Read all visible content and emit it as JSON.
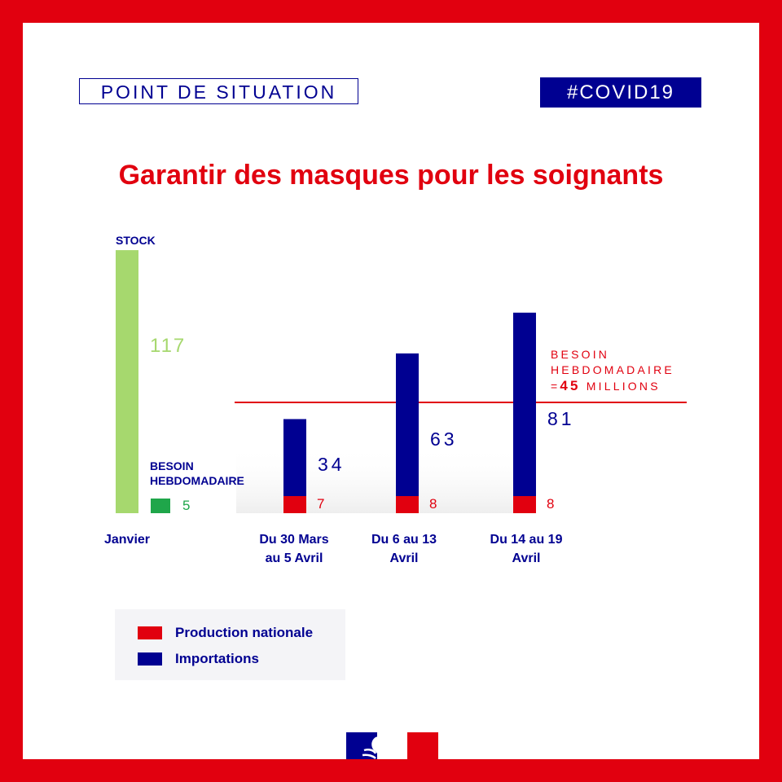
{
  "header": {
    "tag_left": "POINT DE SITUATION",
    "tag_right": "#COVID19",
    "title": "Garantir des masques pour les soignants"
  },
  "colors": {
    "red": "#e1000f",
    "blue": "#000091",
    "stock_green": "#a6d86e",
    "need_green": "#1fa64a"
  },
  "chart_data": {
    "type": "bar",
    "unit": "millions",
    "categories": [
      "Janvier",
      "Du 30 Mars au 5 Avril",
      "Du 6 au 13 Avril",
      "Du 14 au 19 Avril"
    ],
    "category_lines": [
      [
        "Janvier"
      ],
      [
        "Du 30 Mars",
        "au 5 Avril"
      ],
      [
        "Du 6 au 13",
        "Avril"
      ],
      [
        "Du 14 au 19",
        "Avril"
      ]
    ],
    "stock": {
      "label": "STOCK",
      "value": 117
    },
    "january_need": {
      "label_lines": [
        "BESOIN",
        "HEBDOMADAIRE"
      ],
      "value": 5
    },
    "series": [
      {
        "name": "Production nationale",
        "values": [
          null,
          7,
          8,
          8
        ]
      },
      {
        "name": "Importations",
        "values": [
          null,
          34,
          63,
          81
        ]
      }
    ],
    "reference_line": {
      "value": 45,
      "label_lines": [
        "BESOIN",
        "HEBDOMADAIRE"
      ],
      "label_prefix": "=",
      "label_value": "45",
      "label_suffix": "MILLIONS"
    },
    "legend_placement": "bottom-left"
  },
  "legend": {
    "items": [
      {
        "label": "Production nationale",
        "color": "#e1000f"
      },
      {
        "label": "Importations",
        "color": "#000091"
      }
    ]
  },
  "logo": {
    "icon": "marianne-logo"
  }
}
